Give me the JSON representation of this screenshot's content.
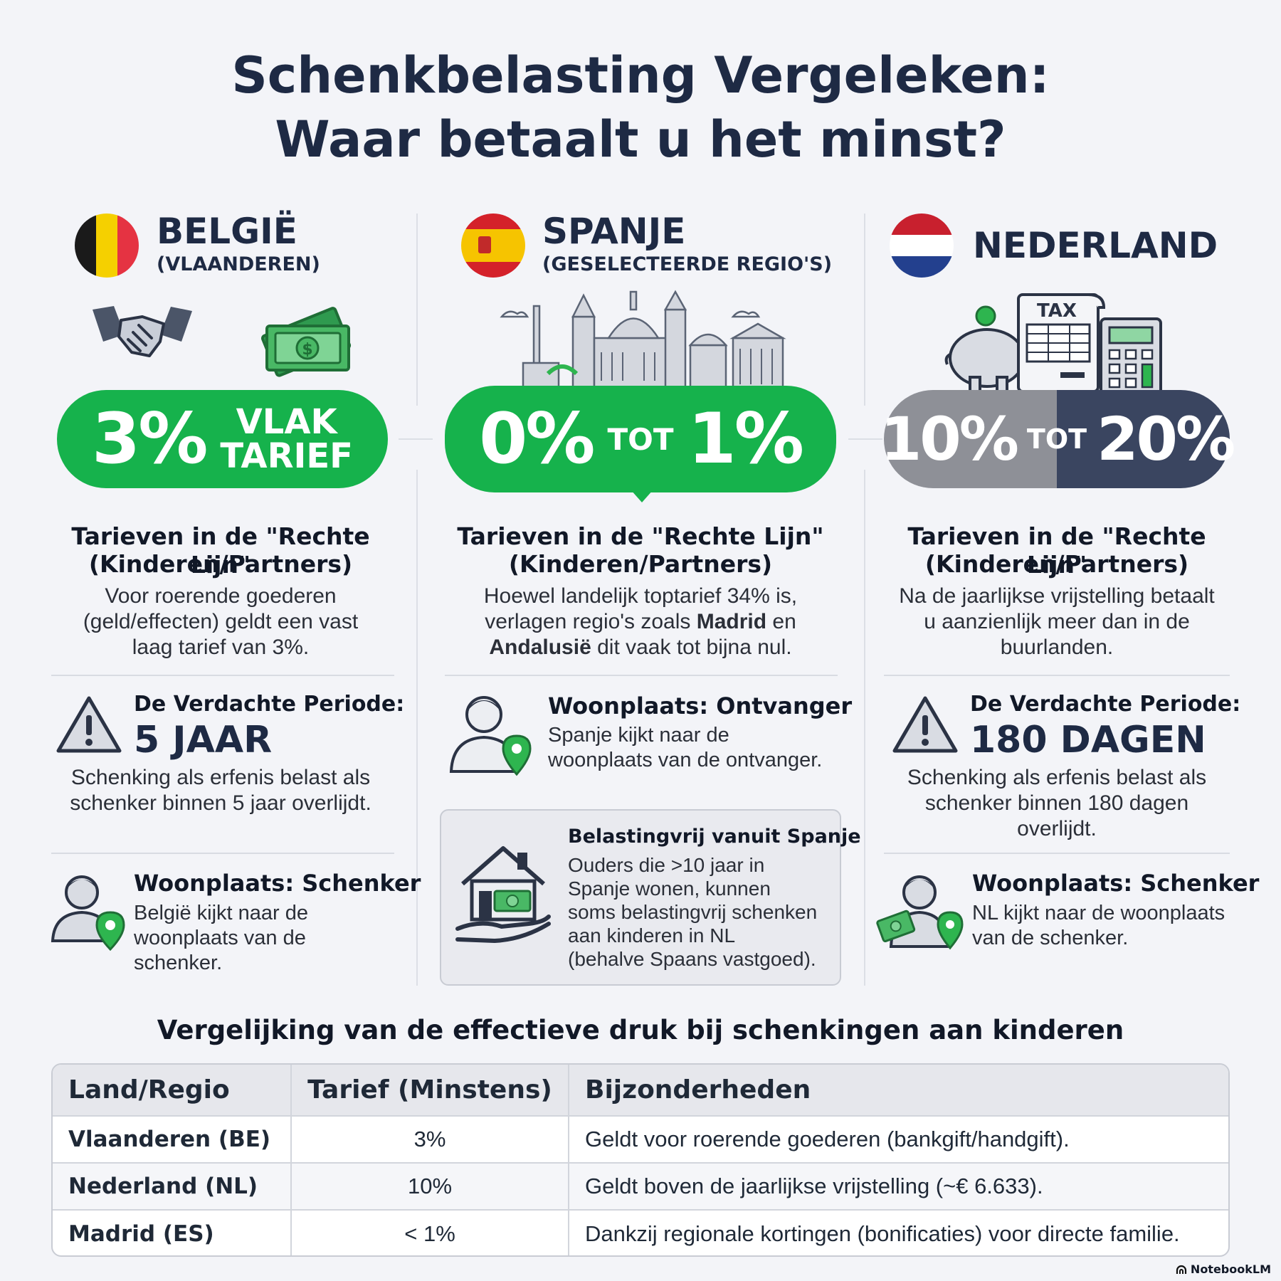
{
  "title_line1": "Schenkbelasting Vergeleken:",
  "title_line2": "Waar betaalt u het minst?",
  "belgie": {
    "name": "BELGIË",
    "sub": "(VLAANDEREN)",
    "rate_big": "3%",
    "rate_word1": "VLAK",
    "rate_word2": "TARIEF",
    "section_title1": "Tarieven in de \"Rechte Lijn\"",
    "section_title2": "(Kinderen/Partners)",
    "section_text": [
      "Voor roerende goederen",
      "(geld/effecten) geldt een vast",
      "laag tarief van 3%."
    ],
    "period_label": "De Verdachte Periode:",
    "period_value": "5 JAAR",
    "period_text": [
      "Schenking als erfenis belast als",
      "schenker binnen 5 jaar overlijdt."
    ],
    "woon_title": "Woonplaats: Schenker",
    "woon_text": [
      "België kijkt naar de",
      "woonplaats van de",
      "schenker."
    ]
  },
  "spanje": {
    "name": "SPANJE",
    "sub": "(GESELECTEERDE REGIO'S)",
    "rate_a": "0%",
    "rate_tot": "TOT",
    "rate_b": "1%",
    "section_title1": "Tarieven in de \"Rechte Lijn\"",
    "section_title2": "(Kinderen/Partners)",
    "text1": "Hoewel landelijk toptarief 34% is,",
    "text2a": "verlagen regio's zoals ",
    "text2b": "Madrid",
    "text2c": " en",
    "text3a": "Andalusië",
    "text3b": " dit vaak tot bijna nul.",
    "woon_title": "Woonplaats: Ontvanger",
    "woon_text": [
      "Spanje kijkt naar de",
      "woonplaats van de ontvanger."
    ],
    "box_title": "Belastingvrij vanuit Spanje",
    "box_text": [
      "Ouders die >10 jaar in",
      "Spanje wonen, kunnen",
      "soms belastingvrij schenken",
      "aan kinderen in NL",
      "(behalve Spaans vastgoed)."
    ]
  },
  "nederland": {
    "name": "NEDERLAND",
    "tax_label": "TAX",
    "rate_a": "10%",
    "rate_tot": "TOT",
    "rate_b": "20%",
    "section_title1": "Tarieven in de \"Rechte Lijn\"",
    "section_title2": "(Kinderen/Partners)",
    "section_text": [
      "Na de jaarlijkse vrijstelling betaalt",
      "u aanzienlijk meer dan in de",
      "buurlanden."
    ],
    "period_label": "De Verdachte Periode:",
    "period_value": "180 DAGEN",
    "period_text": [
      "Schenking als erfenis belast als",
      "schenker binnen 180 dagen",
      "overlijdt."
    ],
    "woon_title": "Woonplaats: Schenker",
    "woon_text": [
      "NL kijkt naar de woonplaats",
      "van de schenker."
    ]
  },
  "table": {
    "title": "Vergelijking van de effectieve druk bij schenkingen aan kinderen",
    "headers": [
      "Land/Regio",
      "Tarief (Minstens)",
      "Bijzonderheden"
    ],
    "rows": [
      [
        "Vlaanderen (BE)",
        "3%",
        "Geldt voor roerende goederen (bankgift/handgift)."
      ],
      [
        "Nederland (NL)",
        "10%",
        "Geldt boven de jaarlijkse vrijstelling (~€ 6.633)."
      ],
      [
        "Madrid (ES)",
        "< 1%",
        "Dankzij regionale kortingen (bonificaties) voor directe familie."
      ]
    ]
  },
  "footer": "NotebookLM",
  "colors": {
    "green": "#16b24c",
    "navy": "#1e2a44",
    "slate": "#3a4560",
    "grey": "#8e9097"
  }
}
